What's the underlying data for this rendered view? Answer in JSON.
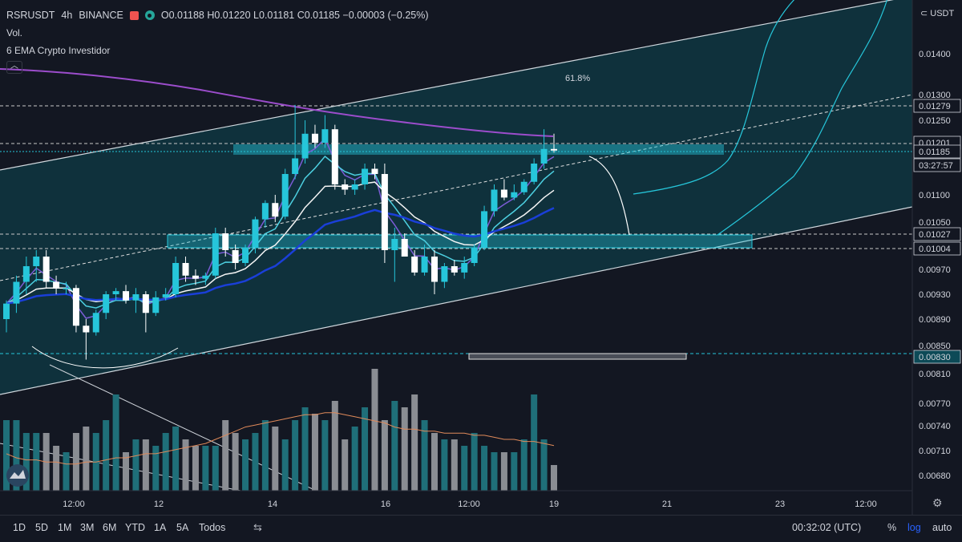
{
  "legend": {
    "symbol": "RSRUSDT",
    "interval": "4h",
    "exchange": "BINANCE",
    "ohlc": "O0.01188  H0.01220  L0.01181  C0.01185  −0.00003  (−0.25%)",
    "volume_label": "Vol.",
    "indicator_label": "6 EMA Crypto Investidor"
  },
  "annotation": {
    "fib_label": "61.8%"
  },
  "price_axis": {
    "currency": "USDT",
    "ticks": [
      "0.01400",
      "0.01300",
      "0.01250",
      "0.01100",
      "0.01050",
      "0.00970",
      "0.00930",
      "0.00890",
      "0.00850",
      "0.00810",
      "0.00770",
      "0.00740",
      "0.00710",
      "0.00680"
    ],
    "markers": [
      {
        "text": "0.01279",
        "color": "#131722",
        "text_color": "#d1d4dc"
      },
      {
        "text": "0.01201",
        "color": "#131722",
        "text_color": "#d1d4dc"
      },
      {
        "text": "0.01185",
        "color": "#131722",
        "text_color": "#d1d4dc"
      },
      {
        "text": "03:27:57",
        "color": "#131722",
        "text_color": "#d1d4dc"
      },
      {
        "text": "0.01027",
        "color": "#131722",
        "text_color": "#d1d4dc"
      },
      {
        "text": "0.01004",
        "color": "#131722",
        "text_color": "#d1d4dc"
      },
      {
        "text": "0.00830",
        "color": "#0d4a57",
        "text_color": "#d1d4dc"
      }
    ]
  },
  "time_axis": [
    "12:00",
    "12",
    "14",
    "16",
    "12:00",
    "19",
    "21",
    "23",
    "12:00"
  ],
  "toolbar": {
    "timeframes": [
      "1D",
      "5D",
      "1M",
      "3M",
      "6M",
      "YTD",
      "1A",
      "5A",
      "Todos"
    ],
    "clock": "00:32:02 (UTC)",
    "percent": "%",
    "log": "log",
    "auto": "auto"
  },
  "colors": {
    "up": "#26c6da",
    "down": "#ffffff",
    "channel": "#e0e0e0",
    "ema_long": "#9c4dcc",
    "zone": "#26c6da"
  },
  "chart_data": {
    "type": "candlestick",
    "title": "RSRUSDT 4h BINANCE",
    "ylim": [
      0.0066,
      0.0145
    ],
    "candles": [
      {
        "o": 0.0089,
        "h": 0.0092,
        "l": 0.0087,
        "c": 0.00915
      },
      {
        "o": 0.00915,
        "h": 0.0096,
        "l": 0.009,
        "c": 0.0095
      },
      {
        "o": 0.0095,
        "h": 0.0099,
        "l": 0.0093,
        "c": 0.00975
      },
      {
        "o": 0.00975,
        "h": 0.01,
        "l": 0.0095,
        "c": 0.0099
      },
      {
        "o": 0.0099,
        "h": 0.01,
        "l": 0.0094,
        "c": 0.0095
      },
      {
        "o": 0.0095,
        "h": 0.0096,
        "l": 0.0093,
        "c": 0.0094
      },
      {
        "o": 0.0094,
        "h": 0.0095,
        "l": 0.0093,
        "c": 0.0094
      },
      {
        "o": 0.0094,
        "h": 0.00945,
        "l": 0.0087,
        "c": 0.0088
      },
      {
        "o": 0.0088,
        "h": 0.0089,
        "l": 0.0083,
        "c": 0.0087
      },
      {
        "o": 0.0087,
        "h": 0.00905,
        "l": 0.00865,
        "c": 0.009
      },
      {
        "o": 0.009,
        "h": 0.00935,
        "l": 0.0089,
        "c": 0.0093
      },
      {
        "o": 0.0093,
        "h": 0.0094,
        "l": 0.0092,
        "c": 0.00935
      },
      {
        "o": 0.00935,
        "h": 0.00945,
        "l": 0.00915,
        "c": 0.0092
      },
      {
        "o": 0.0092,
        "h": 0.0094,
        "l": 0.009,
        "c": 0.0093
      },
      {
        "o": 0.0093,
        "h": 0.00935,
        "l": 0.0087,
        "c": 0.009
      },
      {
        "o": 0.009,
        "h": 0.00935,
        "l": 0.00895,
        "c": 0.00925
      },
      {
        "o": 0.00925,
        "h": 0.0094,
        "l": 0.0092,
        "c": 0.0093
      },
      {
        "o": 0.0093,
        "h": 0.0099,
        "l": 0.00925,
        "c": 0.0098
      },
      {
        "o": 0.0098,
        "h": 0.0099,
        "l": 0.0095,
        "c": 0.0096
      },
      {
        "o": 0.0096,
        "h": 0.0097,
        "l": 0.00945,
        "c": 0.00955
      },
      {
        "o": 0.00955,
        "h": 0.00965,
        "l": 0.00945,
        "c": 0.0096
      },
      {
        "o": 0.0096,
        "h": 0.0104,
        "l": 0.00955,
        "c": 0.0103
      },
      {
        "o": 0.0103,
        "h": 0.0104,
        "l": 0.0099,
        "c": 0.01
      },
      {
        "o": 0.01,
        "h": 0.0101,
        "l": 0.0097,
        "c": 0.0098
      },
      {
        "o": 0.0098,
        "h": 0.0101,
        "l": 0.00975,
        "c": 0.01005
      },
      {
        "o": 0.01005,
        "h": 0.0106,
        "l": 0.00995,
        "c": 0.01055
      },
      {
        "o": 0.01055,
        "h": 0.0109,
        "l": 0.0104,
        "c": 0.01085
      },
      {
        "o": 0.01085,
        "h": 0.011,
        "l": 0.0105,
        "c": 0.0106
      },
      {
        "o": 0.0106,
        "h": 0.0115,
        "l": 0.01055,
        "c": 0.0114
      },
      {
        "o": 0.0114,
        "h": 0.0128,
        "l": 0.0113,
        "c": 0.0117
      },
      {
        "o": 0.0117,
        "h": 0.0125,
        "l": 0.0116,
        "c": 0.0122
      },
      {
        "o": 0.0122,
        "h": 0.0124,
        "l": 0.0119,
        "c": 0.012
      },
      {
        "o": 0.012,
        "h": 0.0126,
        "l": 0.0119,
        "c": 0.0123
      },
      {
        "o": 0.0123,
        "h": 0.0124,
        "l": 0.0111,
        "c": 0.0112
      },
      {
        "o": 0.0112,
        "h": 0.0113,
        "l": 0.011,
        "c": 0.0111
      },
      {
        "o": 0.0111,
        "h": 0.0113,
        "l": 0.011,
        "c": 0.0112
      },
      {
        "o": 0.0112,
        "h": 0.0116,
        "l": 0.0111,
        "c": 0.0115
      },
      {
        "o": 0.0115,
        "h": 0.0116,
        "l": 0.0113,
        "c": 0.0114
      },
      {
        "o": 0.0114,
        "h": 0.0116,
        "l": 0.0098,
        "c": 0.01
      },
      {
        "o": 0.01,
        "h": 0.0104,
        "l": 0.0095,
        "c": 0.0102
      },
      {
        "o": 0.0102,
        "h": 0.0103,
        "l": 0.0099,
        "c": 0.0099
      },
      {
        "o": 0.0099,
        "h": 0.01,
        "l": 0.0096,
        "c": 0.00965
      },
      {
        "o": 0.00965,
        "h": 0.0101,
        "l": 0.0096,
        "c": 0.0099
      },
      {
        "o": 0.0099,
        "h": 0.01,
        "l": 0.0093,
        "c": 0.0095
      },
      {
        "o": 0.0095,
        "h": 0.0098,
        "l": 0.0094,
        "c": 0.00975
      },
      {
        "o": 0.00975,
        "h": 0.00985,
        "l": 0.0096,
        "c": 0.00965
      },
      {
        "o": 0.00965,
        "h": 0.0099,
        "l": 0.00955,
        "c": 0.0098
      },
      {
        "o": 0.0098,
        "h": 0.0101,
        "l": 0.00975,
        "c": 0.01005
      },
      {
        "o": 0.01005,
        "h": 0.0108,
        "l": 0.01,
        "c": 0.0107
      },
      {
        "o": 0.0107,
        "h": 0.0112,
        "l": 0.0106,
        "c": 0.0111
      },
      {
        "o": 0.0111,
        "h": 0.0113,
        "l": 0.0109,
        "c": 0.01095
      },
      {
        "o": 0.01095,
        "h": 0.0112,
        "l": 0.0109,
        "c": 0.01105
      },
      {
        "o": 0.01105,
        "h": 0.0113,
        "l": 0.011,
        "c": 0.01125
      },
      {
        "o": 0.01125,
        "h": 0.0117,
        "l": 0.0112,
        "c": 0.0116
      },
      {
        "o": 0.0116,
        "h": 0.0123,
        "l": 0.0115,
        "c": 0.01188
      },
      {
        "o": 0.01188,
        "h": 0.0122,
        "l": 0.01181,
        "c": 0.01185
      }
    ],
    "volumes": [
      0.55,
      0.55,
      0.45,
      0.45,
      0.45,
      0.35,
      0.3,
      0.45,
      0.5,
      0.45,
      0.55,
      0.75,
      0.3,
      0.4,
      0.4,
      0.35,
      0.45,
      0.5,
      0.4,
      0.35,
      0.35,
      0.35,
      0.55,
      0.45,
      0.4,
      0.45,
      0.55,
      0.5,
      0.4,
      0.55,
      0.65,
      0.6,
      0.55,
      0.7,
      0.4,
      0.5,
      0.65,
      0.95,
      0.55,
      0.7,
      0.65,
      0.75,
      0.55,
      0.45,
      0.4,
      0.4,
      0.35,
      0.45,
      0.35,
      0.3,
      0.3,
      0.3,
      0.4,
      0.75,
      0.4,
      0.2
    ],
    "volume_ma": [
      0.18,
      0.16,
      0.15,
      0.15,
      0.14,
      0.14,
      0.13,
      0.13,
      0.14,
      0.14,
      0.15,
      0.16,
      0.16,
      0.17,
      0.18,
      0.18,
      0.19,
      0.2,
      0.21,
      0.22,
      0.23,
      0.25,
      0.27,
      0.29,
      0.31,
      0.32,
      0.33,
      0.34,
      0.35,
      0.36,
      0.37,
      0.37,
      0.38,
      0.38,
      0.37,
      0.36,
      0.35,
      0.34,
      0.33,
      0.31,
      0.3,
      0.3,
      0.29,
      0.29,
      0.28,
      0.28,
      0.28,
      0.27,
      0.27,
      0.26,
      0.25,
      0.25,
      0.24,
      0.24,
      0.23,
      0.22
    ]
  }
}
